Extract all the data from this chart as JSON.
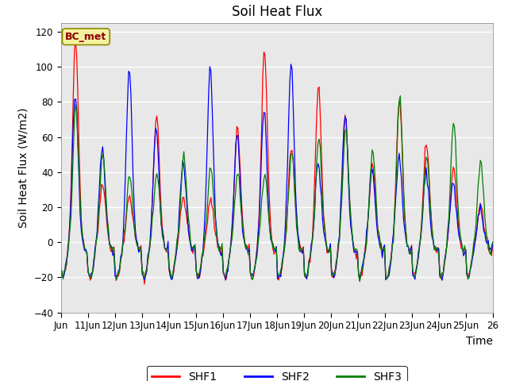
{
  "title": "Soil Heat Flux",
  "xlabel": "Time",
  "ylabel": "Soil Heat Flux (W/m2)",
  "ylim": [
    -40,
    125
  ],
  "yticks": [
    -40,
    -20,
    0,
    20,
    40,
    60,
    80,
    100,
    120
  ],
  "annotation": "BC_met",
  "legend_labels": [
    "SHF1",
    "SHF2",
    "SHF3"
  ],
  "colors": [
    "red",
    "blue",
    "green"
  ],
  "background_color": "#e8e8e8",
  "title_fontsize": 12,
  "axis_fontsize": 10,
  "tick_fontsize": 8.5,
  "xtick_labels": [
    "Jun",
    "11Jun",
    "12Jun",
    "13Jun",
    "14Jun",
    "15Jun",
    "16Jun",
    "17Jun",
    "18Jun",
    "19Jun",
    "20Jun",
    "21Jun",
    "22Jun",
    "23Jun",
    "24Jun",
    "25Jun",
    "26"
  ],
  "day_peaks_shf1": [
    118,
    35,
    27,
    73,
    26,
    25,
    65,
    110,
    55,
    90,
    70,
    45,
    82,
    57,
    44,
    20
  ],
  "day_peaks_shf2": [
    85,
    52,
    100,
    65,
    45,
    100,
    62,
    75,
    103,
    45,
    74,
    42,
    50,
    40,
    35,
    18
  ],
  "day_peaks_shf3": [
    78,
    51,
    38,
    40,
    49,
    43,
    40,
    40,
    52,
    60,
    65,
    52,
    84,
    49,
    68,
    46
  ]
}
